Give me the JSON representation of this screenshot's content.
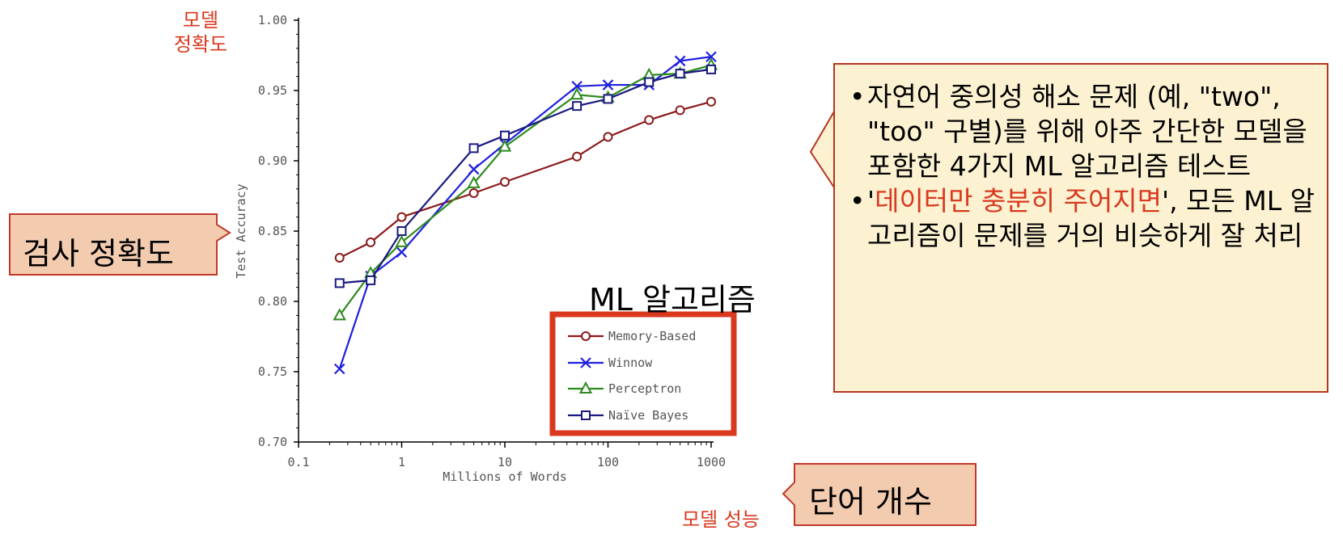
{
  "annotations": {
    "y_title": [
      "모델",
      "정확도"
    ],
    "x_title": "모델 성능",
    "y_callout": "검사 정확도",
    "x_callout": "단어 개수",
    "legend_callout": "ML 알고리즘"
  },
  "note": {
    "bullet_symbol": "•",
    "bullet1": "자연어 중의성 해소 문제 (예, \"two\", \"too\" 구별)를 위해 아주 간단한 모델을 포함한 4가지 ML 알고리즘 테스트",
    "bullet2": {
      "open_quote": "'",
      "highlight": "데이터만 충분히 주어지면",
      "rest": "', 모든 ML 알고리즘이 문제를 거의 비슷하게 잘 처리"
    }
  },
  "colors": {
    "memory": "#8b1a1a",
    "winnow": "#1f1fe0",
    "perceptron": "#2e8b1e",
    "naive": "#1a1a80",
    "accent": "#d9381e",
    "legend_border": "#d9381e"
  },
  "chart_data": {
    "type": "line",
    "xlabel": "Millions of Words",
    "ylabel": "Test Accuracy",
    "x_scale": "log",
    "xlim": [
      0.1,
      1000
    ],
    "ylim": [
      0.7,
      1.0
    ],
    "x_ticks": [
      "0.1",
      "1",
      "10",
      "100",
      "1000"
    ],
    "y_ticks": [
      "0.70",
      "0.75",
      "0.80",
      "0.85",
      "0.90",
      "0.95",
      "1.00"
    ],
    "legend_position": "bottom-right",
    "series": [
      {
        "name": "Memory-Based",
        "marker": "circle",
        "x": [
          0.25,
          0.5,
          1,
          5,
          10,
          50,
          100,
          250,
          500,
          1000
        ],
        "y": [
          0.831,
          0.842,
          0.86,
          0.877,
          0.885,
          0.903,
          0.917,
          0.929,
          0.936,
          0.942
        ]
      },
      {
        "name": "Winnow",
        "marker": "x",
        "x": [
          0.25,
          0.5,
          1,
          5,
          10,
          50,
          100,
          250,
          500,
          1000
        ],
        "y": [
          0.752,
          0.818,
          0.835,
          0.894,
          0.912,
          0.953,
          0.954,
          0.954,
          0.971,
          0.974
        ]
      },
      {
        "name": "Perceptron",
        "marker": "triangle",
        "x": [
          0.25,
          0.5,
          1,
          5,
          10,
          50,
          100,
          250,
          500,
          1000
        ],
        "y": [
          0.79,
          0.82,
          0.842,
          0.884,
          0.91,
          0.947,
          0.945,
          0.961,
          0.962,
          0.968
        ]
      },
      {
        "name": "Naïve Bayes",
        "marker": "square",
        "x": [
          0.25,
          0.5,
          1,
          5,
          10,
          50,
          100,
          250,
          500,
          1000
        ],
        "y": [
          0.813,
          0.815,
          0.85,
          0.909,
          0.918,
          0.939,
          0.944,
          0.956,
          0.962,
          0.965
        ]
      }
    ]
  }
}
